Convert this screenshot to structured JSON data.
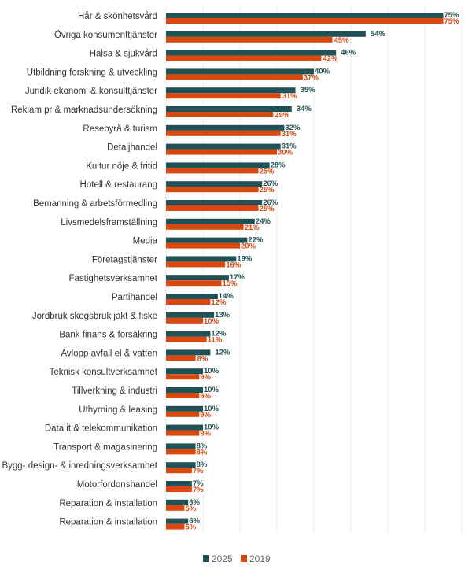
{
  "chart_data": {
    "type": "bar",
    "orientation": "horizontal",
    "categories": [
      "Hår & skönhetsvård",
      "Övriga konsumenttjänster",
      "Hälsa & sjukvård",
      "Utbildning forskning & utveckling",
      "Juridik ekonomi & konsulttjänster",
      "Reklam pr & marknadsundersökning",
      "Resebyrå & turism",
      "Detaljhandel",
      "Kultur nöje & fritid",
      "Hotell & restaurang",
      "Bemanning & arbetsförmedling",
      "Livsmedelsframställning",
      "Media",
      "Företagstjänster",
      "Fastighetsverksamhet",
      "Partihandel",
      "Jordbruk skogsbruk jakt & fiske",
      "Bank finans & försäkring",
      "Avlopp avfall el & vatten",
      "Teknisk konsultverksamhet",
      "Tillverkning & industri",
      "Uthyrning & leasing",
      "Data it & telekommunikation",
      "Transport & magasinering",
      "Bygg- design- & inredningsverksamhet",
      "Motorfordonshandel",
      "Reparation & installation",
      "Reparation & installation"
    ],
    "series": [
      {
        "name": "2025",
        "color": "#1f5256",
        "values": [
          75,
          54,
          46,
          40,
          35,
          34,
          32,
          31,
          28,
          26,
          26,
          24,
          22,
          19,
          17,
          14,
          13,
          12,
          12,
          10,
          10,
          10,
          10,
          8,
          8,
          7,
          6,
          6
        ]
      },
      {
        "name": "2019",
        "color": "#d9480f",
        "values": [
          75,
          45,
          42,
          37,
          31,
          29,
          31,
          30,
          25,
          25,
          25,
          21,
          20,
          16,
          15,
          12,
          10,
          11,
          8,
          9,
          9,
          9,
          9,
          8,
          7,
          7,
          5,
          5
        ]
      }
    ],
    "value_suffix": "%",
    "xlim": [
      0,
      80
    ],
    "grid": true,
    "legend_position": "bottom"
  }
}
